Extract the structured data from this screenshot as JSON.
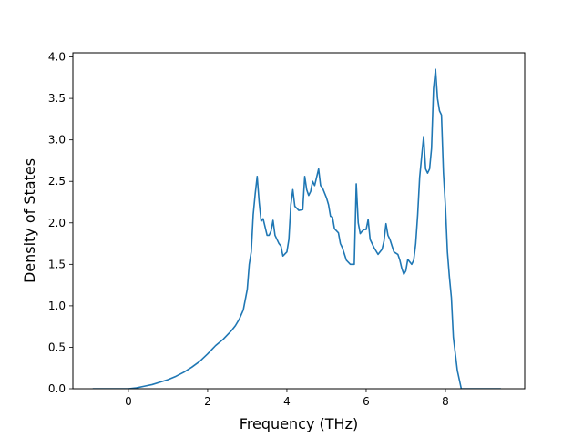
{
  "chart_data": {
    "type": "line",
    "title": "",
    "xlabel": "Frequency (THz)",
    "ylabel": "Density of States",
    "xlim": [
      -1.4,
      10.0
    ],
    "ylim": [
      0.0,
      4.05
    ],
    "xticks": [
      0,
      2,
      4,
      6,
      8
    ],
    "xtick_labels": [
      "0",
      "2",
      "4",
      "6",
      "8"
    ],
    "yticks": [
      0.0,
      0.5,
      1.0,
      1.5,
      2.0,
      2.5,
      3.0,
      3.5,
      4.0
    ],
    "ytick_labels": [
      "0.0",
      "0.5",
      "1.0",
      "1.5",
      "2.0",
      "2.5",
      "3.0",
      "3.5",
      "4.0"
    ],
    "grid": false,
    "line_color": "#1f77b4",
    "series": [
      {
        "x": [
          -0.9,
          -0.5,
          0.0,
          0.2,
          0.4,
          0.6,
          0.8,
          1.0,
          1.2,
          1.4,
          1.6,
          1.8,
          2.0,
          2.2,
          2.4,
          2.6,
          2.7,
          2.8,
          2.9,
          3.0,
          3.05,
          3.1,
          3.15,
          3.2,
          3.25,
          3.3,
          3.35,
          3.4,
          3.5,
          3.55,
          3.6,
          3.65,
          3.7,
          3.8,
          3.85,
          3.9,
          4.0,
          4.05,
          4.1,
          4.15,
          4.2,
          4.3,
          4.4,
          4.45,
          4.5,
          4.55,
          4.6,
          4.65,
          4.7,
          4.75,
          4.8,
          4.85,
          4.9,
          5.0,
          5.05,
          5.1,
          5.15,
          5.2,
          5.3,
          5.35,
          5.4,
          5.5,
          5.6,
          5.65,
          5.7,
          5.75,
          5.8,
          5.85,
          5.9,
          5.95,
          6.0,
          6.05,
          6.1,
          6.2,
          6.3,
          6.4,
          6.45,
          6.5,
          6.55,
          6.6,
          6.7,
          6.8,
          6.85,
          6.9,
          6.95,
          7.0,
          7.05,
          7.1,
          7.15,
          7.2,
          7.25,
          7.3,
          7.35,
          7.4,
          7.45,
          7.5,
          7.55,
          7.6,
          7.65,
          7.7,
          7.75,
          7.8,
          7.85,
          7.9,
          7.95,
          8.0,
          8.05,
          8.1,
          8.15,
          8.2,
          8.3,
          8.4,
          8.5,
          8.6,
          8.7,
          8.8,
          9.0,
          9.4
        ],
        "y": [
          0.0,
          0.0,
          0.0,
          0.01,
          0.03,
          0.05,
          0.08,
          0.11,
          0.15,
          0.2,
          0.26,
          0.33,
          0.42,
          0.52,
          0.6,
          0.7,
          0.76,
          0.84,
          0.95,
          1.2,
          1.5,
          1.65,
          2.1,
          2.35,
          2.56,
          2.25,
          2.02,
          2.05,
          1.85,
          1.85,
          1.9,
          2.03,
          1.85,
          1.75,
          1.72,
          1.6,
          1.65,
          1.8,
          2.22,
          2.4,
          2.2,
          2.15,
          2.16,
          2.56,
          2.4,
          2.33,
          2.38,
          2.5,
          2.45,
          2.55,
          2.65,
          2.45,
          2.42,
          2.3,
          2.22,
          2.08,
          2.07,
          1.93,
          1.88,
          1.75,
          1.7,
          1.55,
          1.5,
          1.5,
          1.5,
          2.47,
          2.0,
          1.87,
          1.9,
          1.92,
          1.92,
          2.04,
          1.8,
          1.7,
          1.62,
          1.68,
          1.78,
          1.99,
          1.85,
          1.8,
          1.65,
          1.62,
          1.55,
          1.45,
          1.38,
          1.42,
          1.56,
          1.53,
          1.5,
          1.55,
          1.75,
          2.1,
          2.55,
          2.8,
          3.04,
          2.65,
          2.6,
          2.65,
          2.9,
          3.62,
          3.85,
          3.5,
          3.35,
          3.3,
          2.6,
          2.2,
          1.65,
          1.35,
          1.1,
          0.62,
          0.22,
          0.0,
          0.0,
          0.0,
          0.0,
          0.0,
          0.0,
          0.0
        ],
        "note": ""
      }
    ]
  }
}
